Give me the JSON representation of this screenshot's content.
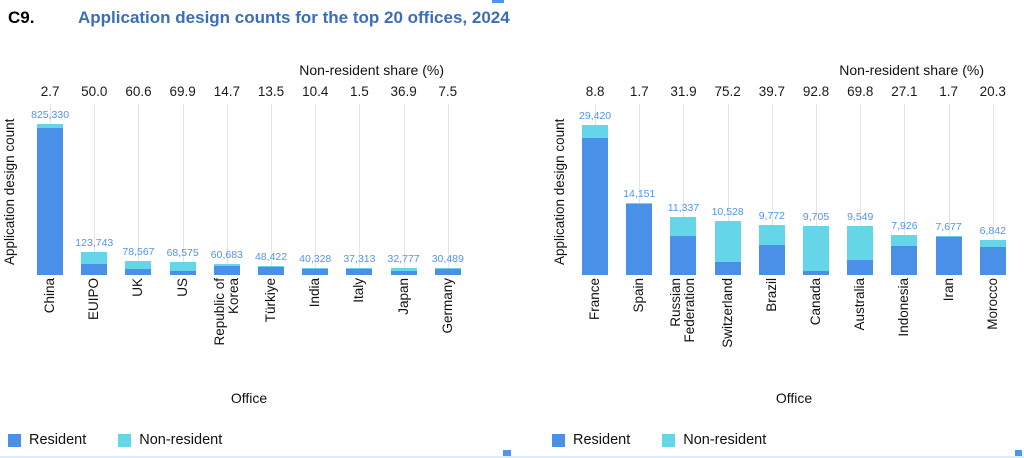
{
  "figure_label": "C9.",
  "title": "Application design counts for the top 20 offices, 2024",
  "colors": {
    "resident": "#4a90e8",
    "non_resident": "#65d6e7",
    "title_text": "#3b6db8",
    "value_label": "#5094f0",
    "gridline": "#e4e4e4"
  },
  "chart_data": [
    {
      "type": "bar",
      "stacked": true,
      "top_axis_label": "Non-resident share (%)",
      "xlabel": "Office",
      "ylabel": "Application design count",
      "legend": [
        "Resident",
        "Non-resident"
      ],
      "legend_position": "bottom",
      "grid": "vertical-category-lines",
      "categories": [
        "China",
        "EUIPO",
        "UK",
        "US",
        "Republic of Korea",
        "Türkiye",
        "India",
        "Italy",
        "Japan",
        "Germany"
      ],
      "values": [
        825330,
        123743,
        78567,
        68575,
        60683,
        48422,
        40328,
        37313,
        32777,
        30489
      ],
      "value_labels": [
        "825,330",
        "123,743",
        "78,567",
        "68,575",
        "60,683",
        "48,422",
        "40,328",
        "37,313",
        "32,777",
        "30,489"
      ],
      "non_resident_share_pct": [
        2.7,
        50.0,
        60.6,
        69.9,
        14.7,
        13.5,
        10.4,
        1.5,
        36.9,
        7.5
      ],
      "share_labels": [
        "2.7",
        "50.0",
        "60.6",
        "69.9",
        "14.7",
        "13.5",
        "10.4",
        "1.5",
        "36.9",
        "7.5"
      ],
      "ylim": [
        0,
        825330
      ]
    },
    {
      "type": "bar",
      "stacked": true,
      "top_axis_label": "Non-resident share (%)",
      "xlabel": "Office",
      "ylabel": "Application design count",
      "legend": [
        "Resident",
        "Non-resident"
      ],
      "legend_position": "bottom",
      "grid": "vertical-category-lines",
      "categories": [
        "France",
        "Spain",
        "Russian Federation",
        "Switzerland",
        "Brazil",
        "Canada",
        "Australia",
        "Indonesia",
        "Iran",
        "Morocco"
      ],
      "values": [
        29420,
        14151,
        11337,
        10528,
        9772,
        9705,
        9549,
        7926,
        7677,
        6842
      ],
      "value_labels": [
        "29,420",
        "14,151",
        "11,337",
        "10,528",
        "9,772",
        "9,705",
        "9,549",
        "7,926",
        "7,677",
        "6,842"
      ],
      "non_resident_share_pct": [
        8.8,
        1.7,
        31.9,
        75.2,
        39.7,
        92.8,
        69.8,
        27.1,
        1.7,
        20.3
      ],
      "share_labels": [
        "8.8",
        "1.7",
        "31.9",
        "75.2",
        "39.7",
        "92.8",
        "69.8",
        "27.1",
        "1.7",
        "20.3"
      ],
      "ylim": [
        0,
        29420
      ]
    }
  ]
}
